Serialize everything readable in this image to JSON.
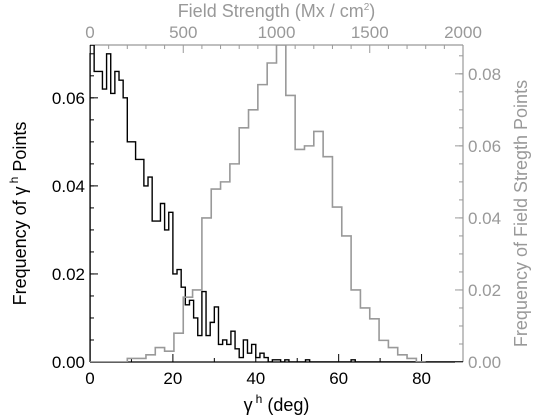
{
  "chart_data": {
    "type": "line",
    "grid": false,
    "axes": {
      "bottom": {
        "label_symbol": "γ",
        "label_superscript": "h",
        "label_suffix": " (deg)",
        "range": [
          0,
          90
        ],
        "ticks": [
          "0",
          "20",
          "40",
          "60",
          "80"
        ],
        "tick_values": [
          0,
          20,
          40,
          60,
          80
        ],
        "color": "#000000"
      },
      "top": {
        "label_main": "Field Strength (Mx / cm",
        "label_superscript": "2",
        "label_end": ")",
        "range": [
          0,
          2000
        ],
        "ticks": [
          "0",
          "500",
          "1000",
          "1500",
          "2000"
        ],
        "tick_values": [
          0,
          500,
          1000,
          1500,
          2000
        ],
        "color": "#999999"
      },
      "left": {
        "label_prefix": "Frequency of ",
        "label_symbol": "γ",
        "label_superscript": "h",
        "label_suffix": " Points",
        "range": [
          0,
          0.072
        ],
        "ticks": [
          "0.00",
          "0.02",
          "0.04",
          "0.06"
        ],
        "tick_values": [
          0,
          0.02,
          0.04,
          0.06
        ],
        "color": "#000000"
      },
      "right": {
        "label": "Frequency of Field Stregth Points",
        "range": [
          0,
          0.088
        ],
        "ticks": [
          "0.00",
          "0.02",
          "0.04",
          "0.06",
          "0.08"
        ],
        "tick_values": [
          0,
          0.02,
          0.04,
          0.06,
          0.08
        ],
        "color": "#999999"
      }
    },
    "series": [
      {
        "axis_x": "bottom",
        "axis_y": "left",
        "color": "#000000",
        "bin_start": 0,
        "bin_width": 1,
        "values": [
          0.072,
          0.066,
          0.066,
          0.062,
          0.07,
          0.061,
          0.066,
          0.064,
          0.06,
          0.05,
          0.05,
          0.046,
          0.046,
          0.04,
          0.042,
          0.032,
          0.032,
          0.036,
          0.03,
          0.034,
          0.02,
          0.021,
          0.017,
          0.013,
          0.014,
          0.01,
          0.006,
          0.016,
          0.006,
          0.009,
          0.0125,
          0.004,
          0.005,
          0.004,
          0.007,
          0.003,
          0.001,
          0.005,
          0.002,
          0.004,
          0.001,
          0.002,
          0.001,
          0,
          0.0005,
          0.0005,
          0,
          0.0005,
          0,
          0,
          0,
          0,
          0.0005,
          0,
          0,
          0,
          0,
          0,
          0,
          0,
          0,
          0,
          0,
          0.0005,
          0,
          0,
          0,
          0,
          0,
          0,
          0,
          0,
          0,
          0,
          0,
          0,
          0,
          0,
          0,
          0,
          0,
          0,
          0,
          0,
          0,
          0,
          0,
          0,
          0,
          0
        ]
      },
      {
        "axis_x": "top",
        "axis_y": "right",
        "color": "#999999",
        "x": [
          0,
          100,
          200,
          300,
          350,
          400,
          450,
          500,
          550,
          600,
          650,
          700,
          750,
          800,
          850,
          900,
          950,
          1000,
          1050,
          1100,
          1150,
          1200,
          1250,
          1300,
          1350,
          1400,
          1450,
          1500,
          1550,
          1600,
          1650,
          1700,
          1750
        ],
        "values": [
          0,
          0,
          0.001,
          0.002,
          0.004,
          0.003,
          0.008,
          0.018,
          0.02,
          0.04,
          0.048,
          0.05,
          0.055,
          0.065,
          0.07,
          0.077,
          0.083,
          0.088,
          0.074,
          0.059,
          0.06,
          0.064,
          0.057,
          0.043,
          0.035,
          0.02,
          0.015,
          0.012,
          0.006,
          0.004,
          0.002,
          0.001,
          0
        ]
      }
    ]
  }
}
